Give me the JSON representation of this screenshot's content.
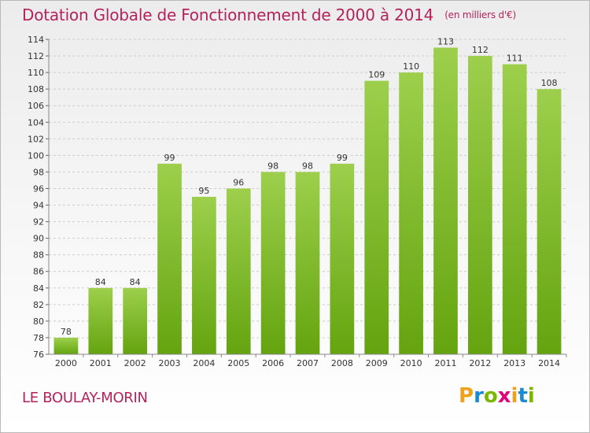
{
  "header": {
    "title": "Dotation Globale de Fonctionnement de 2000 à 2014",
    "subtitle": "(en milliers d'€)"
  },
  "footer": {
    "commune": "LE BOULAY-MORIN",
    "logo": "Proxiti",
    "logo_colors": [
      "#f0a21d",
      "#1a8bd1",
      "#7ab800",
      "#e2007a",
      "#f0a21d",
      "#1a8bd1",
      "#7ab800"
    ]
  },
  "colors": {
    "bar_top": "#9dcf4c",
    "bar_bottom": "#64a40f",
    "grid": "#cccccc",
    "axis_text": "#333333"
  },
  "chart_data": {
    "type": "bar",
    "categories": [
      "2000",
      "2001",
      "2002",
      "2003",
      "2004",
      "2005",
      "2006",
      "2007",
      "2008",
      "2009",
      "2010",
      "2011",
      "2012",
      "2013",
      "2014"
    ],
    "values": [
      78,
      84,
      84,
      99,
      95,
      96,
      98,
      98,
      99,
      109,
      110,
      113,
      112,
      111,
      108
    ],
    "ylim": [
      76,
      114
    ],
    "ytick_step": 2,
    "grid": true,
    "data_labels": true
  }
}
